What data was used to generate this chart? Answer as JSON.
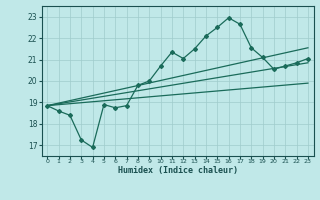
{
  "title": "",
  "xlabel": "Humidex (Indice chaleur)",
  "bg_color": "#c0e8e8",
  "grid_color": "#a0cccc",
  "line_color": "#1a6b5a",
  "xlim": [
    -0.5,
    23.5
  ],
  "ylim": [
    16.5,
    23.5
  ],
  "xticks": [
    0,
    1,
    2,
    3,
    4,
    5,
    6,
    7,
    8,
    9,
    10,
    11,
    12,
    13,
    14,
    15,
    16,
    17,
    18,
    19,
    20,
    21,
    22,
    23
  ],
  "yticks": [
    17,
    18,
    19,
    20,
    21,
    22,
    23
  ],
  "line1_x": [
    0,
    1,
    2,
    3,
    4,
    5,
    6,
    7,
    8,
    9,
    10,
    11,
    12,
    13,
    14,
    15,
    16,
    17,
    18,
    19,
    20,
    21,
    22,
    23
  ],
  "line1_y": [
    18.85,
    18.6,
    18.4,
    17.25,
    16.9,
    18.9,
    18.75,
    18.85,
    19.8,
    20.0,
    20.7,
    21.35,
    21.05,
    21.5,
    22.1,
    22.5,
    22.95,
    22.65,
    21.55,
    21.1,
    20.55,
    20.7,
    20.85,
    21.05
  ],
  "line2_x": [
    0,
    23
  ],
  "line2_y": [
    18.85,
    21.55
  ],
  "line3_x": [
    0,
    23
  ],
  "line3_y": [
    18.85,
    20.85
  ],
  "line4_x": [
    0,
    23
  ],
  "line4_y": [
    18.85,
    19.9
  ]
}
